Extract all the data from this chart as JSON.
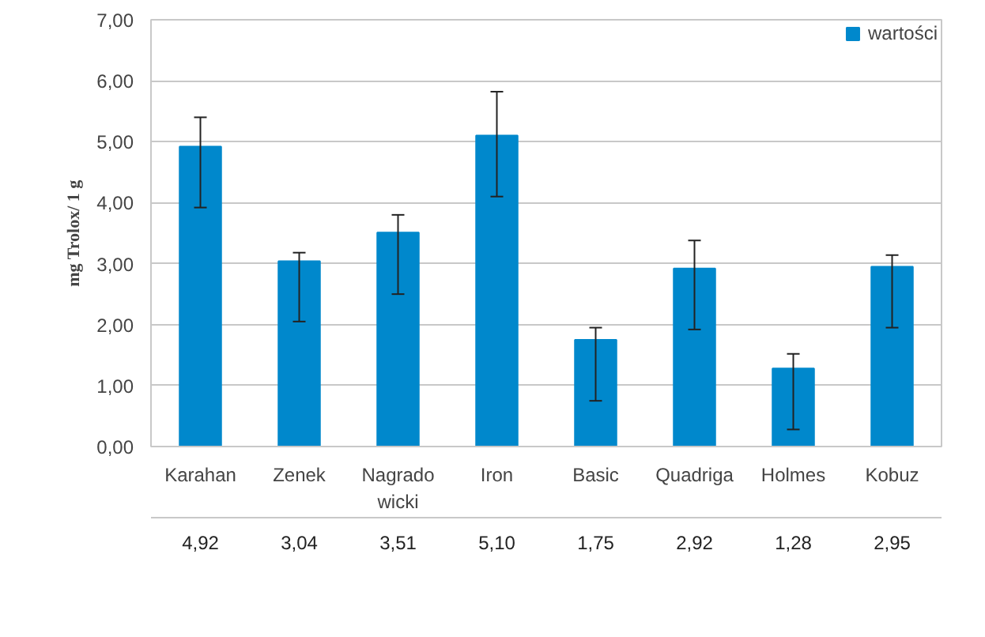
{
  "chart_data": {
    "type": "bar",
    "ylabel": "mg Trolox/ 1 g",
    "categories": [
      "Karahan",
      "Zenek",
      "Nagrado\nwicki",
      "Iron",
      "Basic",
      "Quadriga",
      "Holmes",
      "Kobuz"
    ],
    "series": [
      {
        "name": "wartości",
        "color": "#0088cc",
        "values": [
          4.92,
          3.04,
          3.51,
          5.1,
          1.75,
          2.92,
          1.28,
          2.95
        ],
        "value_labels": [
          "4,92",
          "3,04",
          "3,51",
          "5,10",
          "1,75",
          "2,92",
          "1,28",
          "2,95"
        ],
        "errors": [
          [
            3.92,
            5.4
          ],
          [
            2.05,
            3.18
          ],
          [
            2.5,
            3.8
          ],
          [
            4.1,
            5.82
          ],
          [
            0.75,
            1.95
          ],
          [
            1.92,
            3.38
          ],
          [
            0.28,
            1.52
          ],
          [
            1.95,
            3.14
          ]
        ]
      }
    ],
    "ylim": [
      0,
      7
    ],
    "yticks": [
      {
        "value": 0,
        "label": "0,00"
      },
      {
        "value": 1,
        "label": "1,00"
      },
      {
        "value": 2,
        "label": "2,00"
      },
      {
        "value": 3,
        "label": "3,00"
      },
      {
        "value": 4,
        "label": "4,00"
      },
      {
        "value": 5,
        "label": "5,00"
      },
      {
        "value": 6,
        "label": "6,00"
      },
      {
        "value": 7,
        "label": "7,00"
      }
    ],
    "grid": "y",
    "legend": "top right"
  }
}
